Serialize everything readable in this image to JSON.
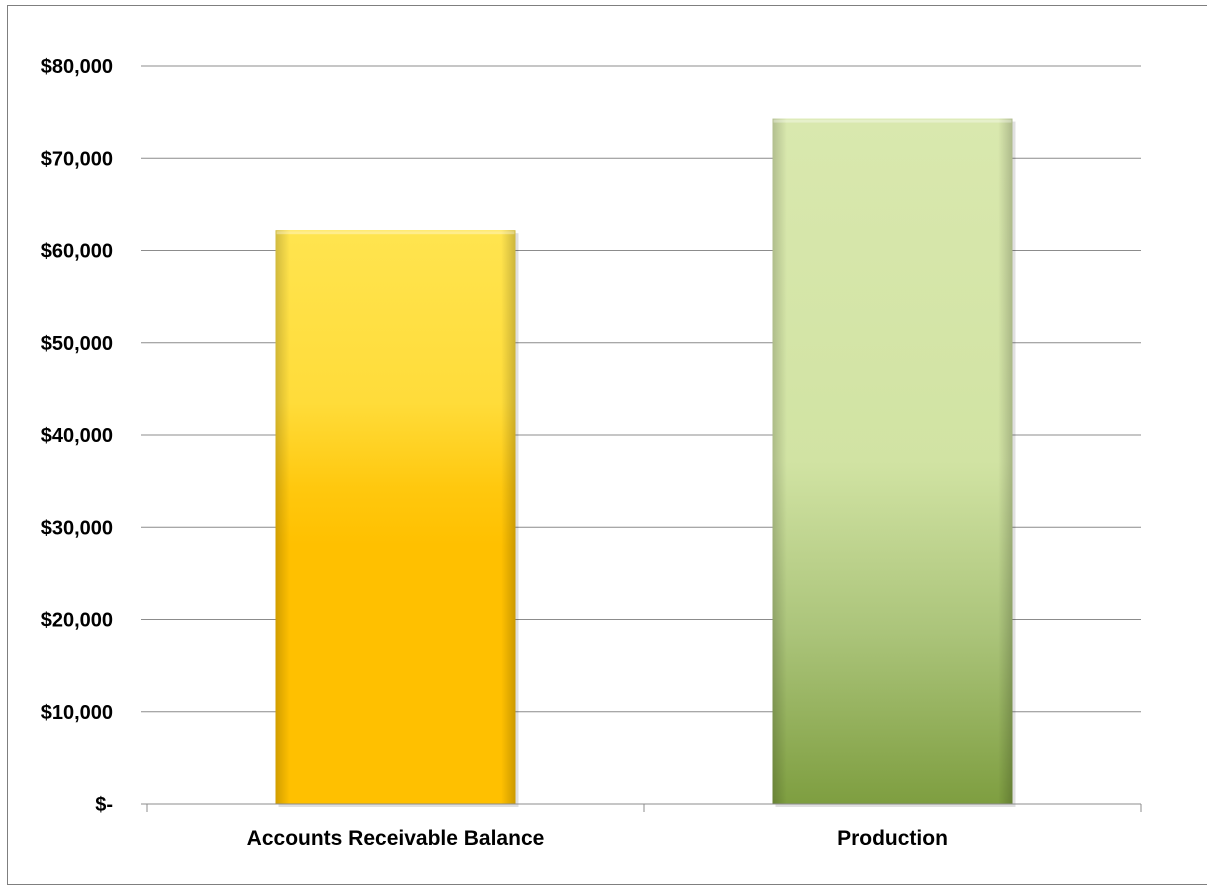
{
  "chart_data": {
    "type": "bar",
    "title": "",
    "xlabel": "",
    "ylabel": "",
    "categories": [
      "Accounts Receivable Balance",
      "Production"
    ],
    "series": [
      {
        "values": [
          62200,
          74300
        ]
      }
    ],
    "ylim": [
      0,
      80000
    ],
    "yticks": [
      0,
      10000,
      20000,
      30000,
      40000,
      50000,
      60000,
      70000,
      80000
    ],
    "ytick_labels": [
      "$-",
      "$10,000",
      "$20,000",
      "$30,000",
      "$40,000",
      "$50,000",
      "$60,000",
      "$70,000",
      "$80,000"
    ],
    "grid": true,
    "legend": "none",
    "colors": {
      "bar_1_top": "#FFE24D",
      "bar_1_bottom": "#FFC000",
      "bar_2_top": "#D7E6AA",
      "bar_2_bottom": "#7A9A3C",
      "gridline": "#8c8c8c",
      "frame": "#7f7f7f"
    }
  }
}
